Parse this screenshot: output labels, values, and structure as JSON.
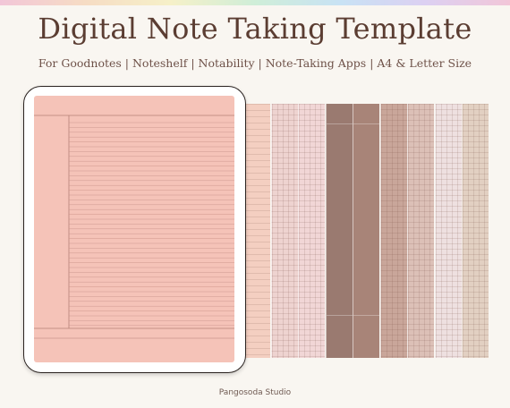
{
  "header": {
    "title": "Digital Note Taking Template",
    "subtitle": "For Goodnotes | Noteshelf | Notability | Note-Taking Apps | A4 & Letter Size"
  },
  "preview_strips": [
    {
      "style": "lined",
      "color": "#f4cfc1"
    },
    {
      "style": "grid",
      "color": "#eed3d0"
    },
    {
      "style": "dotted",
      "color": "#f1d6d6"
    },
    {
      "style": "dark",
      "color": "#9a7a70"
    },
    {
      "style": "cornell",
      "color": "#a88478"
    },
    {
      "style": "grid",
      "color": "#c9a69a"
    },
    {
      "style": "grid",
      "color": "#dcc0b7"
    },
    {
      "style": "grid",
      "color": "#eee0e0"
    },
    {
      "style": "grid",
      "color": "#e2d0c2"
    }
  ],
  "tablet": {
    "page_color": "#f5c3b8",
    "line_color": "#c9948a",
    "margin_line_color": "#b58176"
  },
  "footer": {
    "credit": "Pangosoda Studio"
  }
}
